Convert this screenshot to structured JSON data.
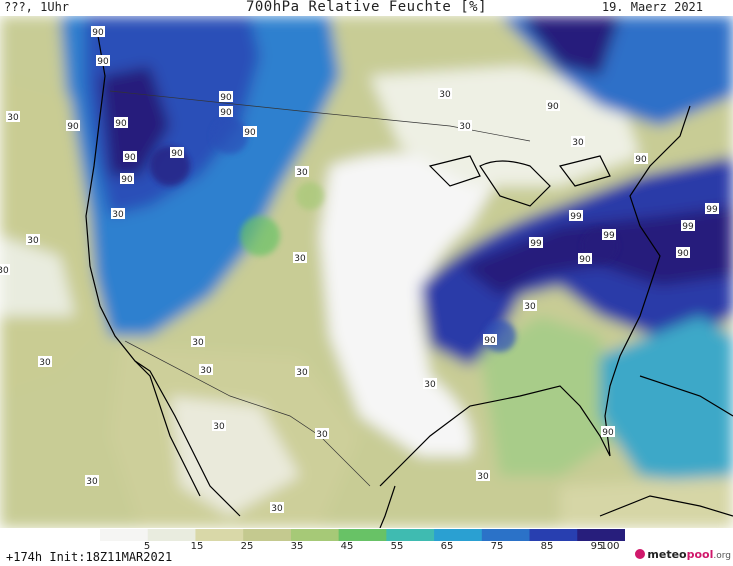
{
  "header": {
    "left_text": "???, 1Uhr",
    "title": "700hPa Relative Feuchte [%]",
    "date": "19. Maerz 2021"
  },
  "colorbar": {
    "tick_labels": [
      "5",
      "15",
      "25",
      "35",
      "45",
      "55",
      "65",
      "75",
      "85",
      "95",
      "100"
    ],
    "colors": [
      "#f5f5f3",
      "#e9ecdf",
      "#d9d8a8",
      "#c4c98f",
      "#a6c977",
      "#68c266",
      "#3fbbb1",
      "#2aa0d2",
      "#2b72c8",
      "#283fb0",
      "#271e7c"
    ]
  },
  "footer": {
    "init_text": "+174h Init:18Z11MAR2021",
    "brand_meteo": "meteo",
    "brand_pool": "pool",
    "brand_org": ".org"
  },
  "map_labels": [
    "90",
    "90",
    "90",
    "90",
    "90",
    "90",
    "90",
    "90",
    "90",
    "90",
    "90",
    "90",
    "90",
    "90",
    "90",
    "90",
    "99",
    "99",
    "99",
    "99",
    "99",
    "30",
    "30",
    "30",
    "30",
    "30",
    "30",
    "30",
    "30",
    "30",
    "30",
    "30",
    "30",
    "30",
    "30",
    "30",
    "30",
    "30",
    "30",
    "30",
    "30",
    "30"
  ]
}
